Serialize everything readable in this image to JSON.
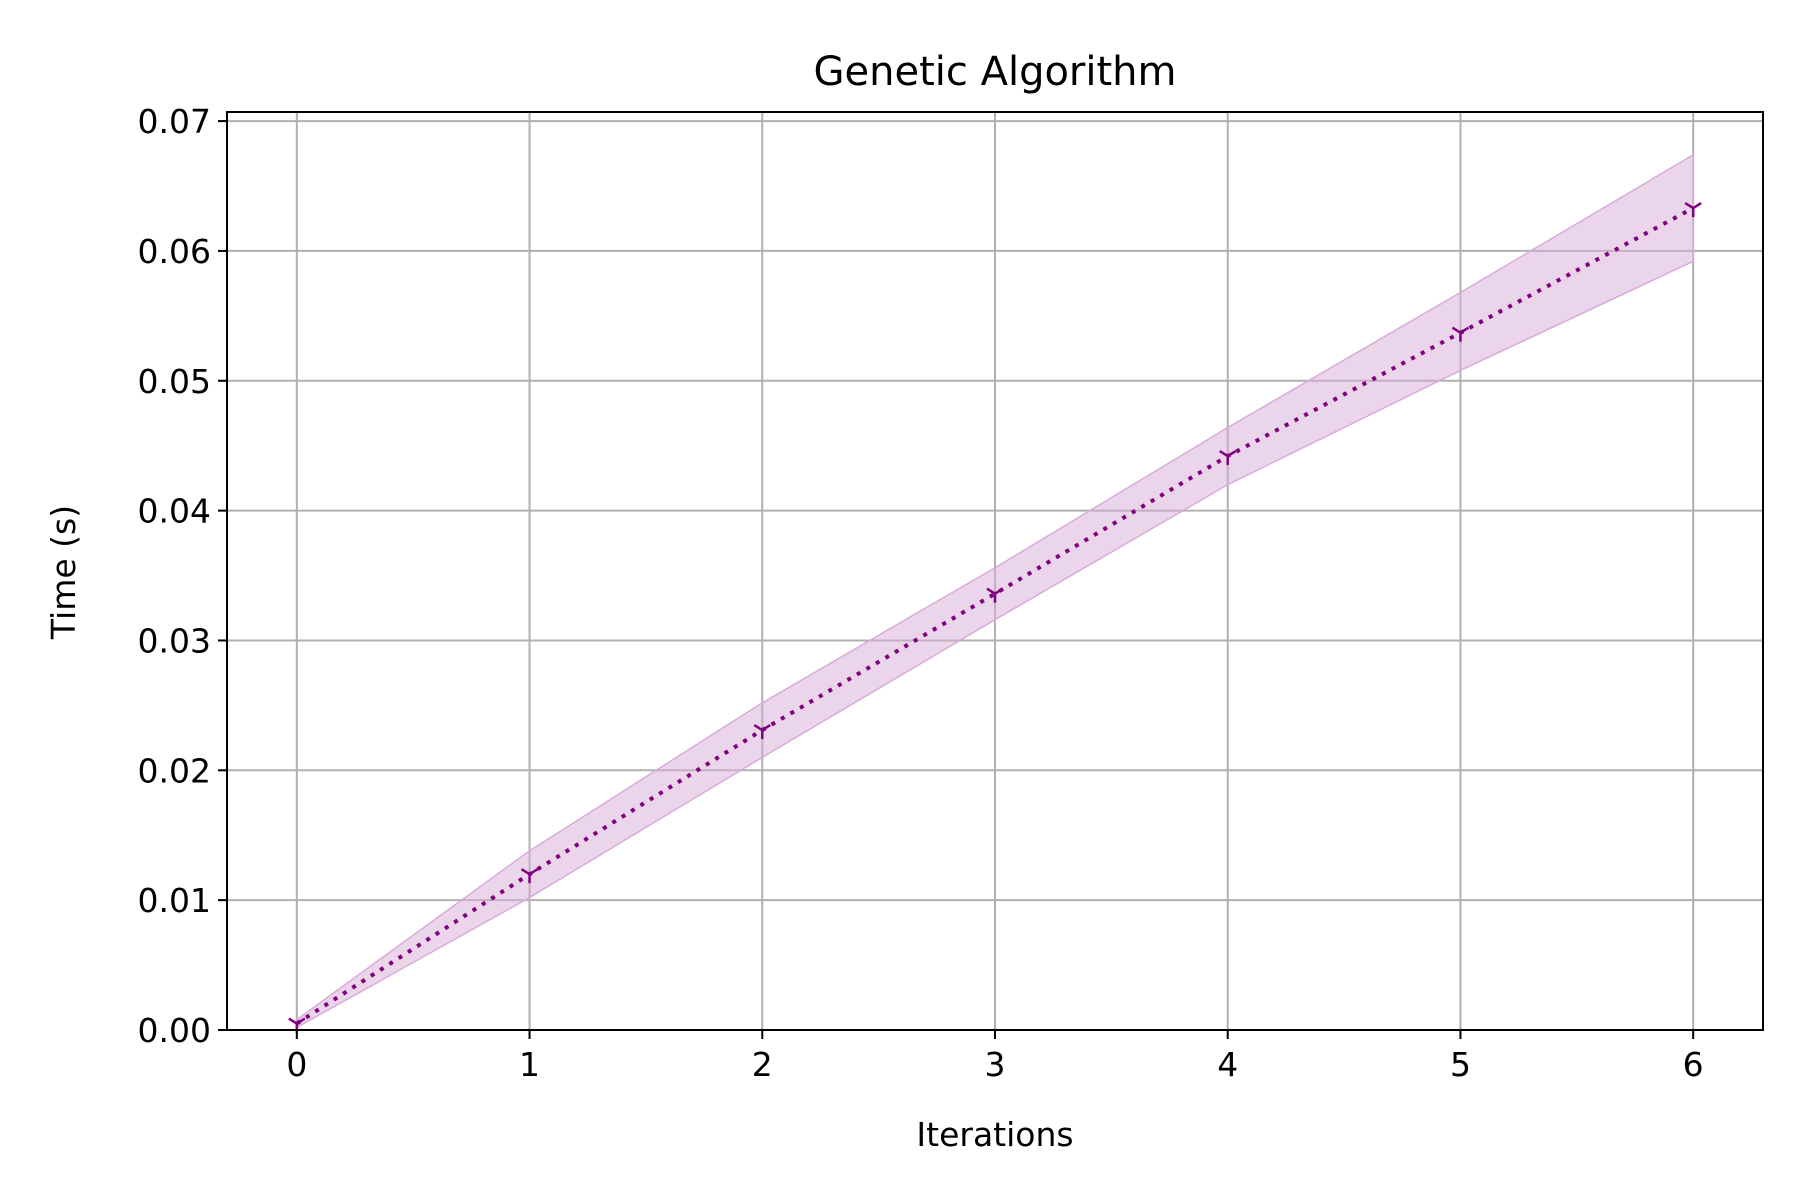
{
  "chart_data": {
    "type": "line",
    "title": "Genetic Algorithm",
    "xlabel": "Iterations",
    "ylabel": "Time (s)",
    "xlim": [
      -0.3,
      6.3
    ],
    "ylim": [
      0,
      0.0707
    ],
    "xticks": [
      0,
      1,
      2,
      3,
      4,
      5,
      6
    ],
    "xtick_labels": [
      "0",
      "1",
      "2",
      "3",
      "4",
      "5",
      "6"
    ],
    "yticks": [
      0,
      0.01,
      0.02,
      0.03,
      0.04,
      0.05,
      0.06,
      0.07
    ],
    "ytick_labels": [
      "0.00",
      "0.01",
      "0.02",
      "0.03",
      "0.04",
      "0.05",
      "0.06",
      "0.07"
    ],
    "grid": true,
    "series": [
      {
        "x": [
          0,
          1,
          2,
          3,
          4,
          5,
          6
        ],
        "y": [
          0.0005,
          0.012,
          0.0231,
          0.0336,
          0.0442,
          0.0537,
          0.0633
        ],
        "upper": [
          0.0008,
          0.0138,
          0.0252,
          0.0356,
          0.0464,
          0.0568,
          0.0674
        ],
        "lower": [
          0.0002,
          0.0102,
          0.021,
          0.0316,
          0.042,
          0.0508,
          0.0592
        ],
        "color": "#800080",
        "band_color": "#d8acd8",
        "line_style": "dotted",
        "marker": "tri-down"
      }
    ],
    "colors": {
      "grid": "#b0b0b0",
      "axes": "#000000",
      "line": "#800080"
    }
  }
}
